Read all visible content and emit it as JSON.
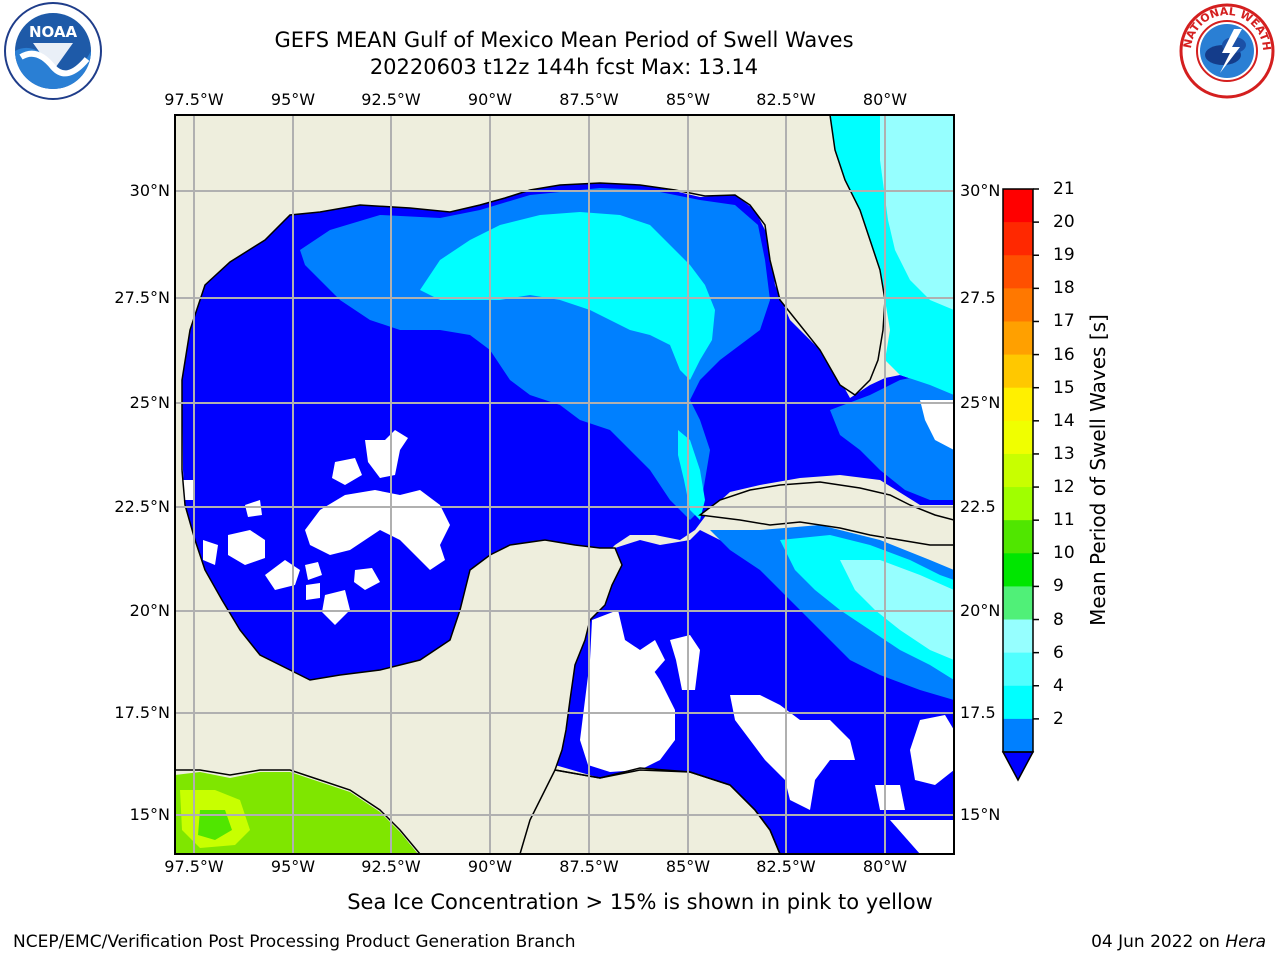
{
  "header": {
    "title_line1": "GEFS MEAN Gulf of Mexico Mean Period of Swell Waves",
    "title_line2": "20220603 t12z 144h fcst   Max: 13.14"
  },
  "logos": {
    "left": {
      "name": "noaa-logo",
      "text": "NOAA"
    },
    "right": {
      "name": "nws-logo",
      "text": "NATIONAL WEATHER SERVICE"
    }
  },
  "map": {
    "lon_ticks": [
      "97.5°W",
      "95°W",
      "92.5°W",
      "90°W",
      "87.5°W",
      "85°W",
      "82.5°W",
      "80°W"
    ],
    "lat_ticks_left": [
      "30°N",
      "27.5°N",
      "25°N",
      "22.5°N",
      "20°N",
      "17.5°N",
      "15°N"
    ],
    "lat_ticks_right": [
      "30°N",
      "27.5",
      "25°N",
      "22.5",
      "20°N",
      "17.5",
      "15°N"
    ],
    "extent": {
      "lon_min": -98.0,
      "lon_max": -78.3,
      "lat_min": 14.0,
      "lat_max": 31.8
    },
    "land_color": "#eeeedd",
    "grid_color": "#b0b0b0"
  },
  "colorbar": {
    "title": "Mean Period of Swell Waves [s]",
    "labels": [
      "21",
      "20",
      "19",
      "18",
      "17",
      "16",
      "15",
      "14",
      "13",
      "12",
      "11",
      "10",
      "9",
      "8",
      "6",
      "4",
      "2"
    ],
    "colors": [
      "#ff0000",
      "#ff2800",
      "#ff5000",
      "#ff7800",
      "#ffa000",
      "#ffc800",
      "#fff000",
      "#f0ff00",
      "#c8ff00",
      "#a0ff00",
      "#50e600",
      "#00e600",
      "#50f078",
      "#96ffff",
      "#50ffff",
      "#00ffff",
      "#0080ff"
    ],
    "extend_color": "#0000ff"
  },
  "note": "Sea Ice Concentration > 15% is shown in pink to yellow",
  "footer": {
    "left": "NCEP/EMC/Verification Post Processing Product Generation Branch",
    "date": "04 Jun 2022 on ",
    "machine": "Hera"
  }
}
